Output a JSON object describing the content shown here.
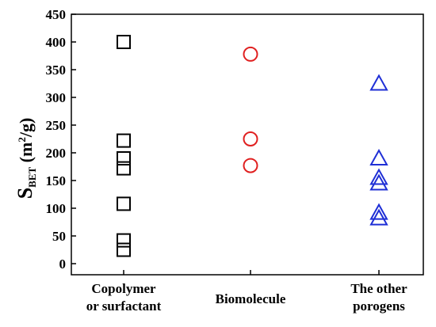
{
  "chart_data": {
    "type": "scatter",
    "ylabel": {
      "main": "S",
      "subscript": "BET",
      "unit_prefix": " (m",
      "unit_superscript": "2",
      "unit_suffix": "/g)"
    },
    "ylim": [
      -20,
      450
    ],
    "yticks": [
      0,
      50,
      100,
      150,
      200,
      250,
      300,
      350,
      400,
      450
    ],
    "categories": [
      {
        "lines": [
          "Copolymer",
          "or surfactant"
        ]
      },
      {
        "lines": [
          "Biomolecule"
        ]
      },
      {
        "lines": [
          "The other",
          "porogens"
        ]
      }
    ],
    "grid": false,
    "series": [
      {
        "category_index": 0,
        "marker": "square",
        "color": "#000000",
        "values": [
          400,
          222,
          190,
          172,
          108,
          42,
          25
        ]
      },
      {
        "category_index": 1,
        "marker": "circle",
        "color": "#e02020",
        "values": [
          378,
          225,
          177
        ]
      },
      {
        "category_index": 2,
        "marker": "triangle",
        "color": "#1f2fd6",
        "values": [
          325,
          190,
          155,
          145,
          92,
          82
        ]
      }
    ]
  }
}
